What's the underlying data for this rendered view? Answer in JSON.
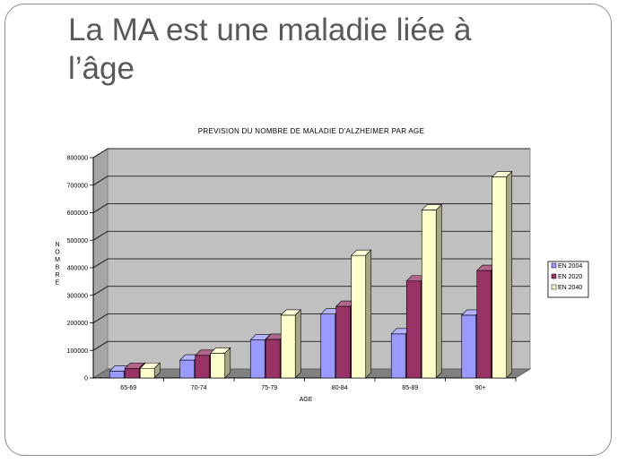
{
  "slide": {
    "title_line1": "La MA est une maladie liée à",
    "title_line2": "l’âge"
  },
  "chart_data": {
    "type": "bar",
    "title": "PREVISION DU NOMBRE DE MALADIE D'ALZHEIMER PAR AGE",
    "xlabel": "AGE",
    "ylabel": "NOMBRE",
    "ylim": [
      0,
      800000
    ],
    "yticks": [
      "0",
      "100000",
      "200000",
      "300000",
      "400000",
      "500000",
      "600000",
      "700000",
      "800000"
    ],
    "grid": true,
    "legend_position": "right",
    "categories": [
      "65-69",
      "70-74",
      "75-79",
      "80-84",
      "85-89",
      "90+"
    ],
    "series": [
      {
        "name": "EN 2004",
        "color": "#9999ff",
        "values": [
          25000,
          65000,
          138000,
          232000,
          160000,
          228000
        ]
      },
      {
        "name": "EN 2020",
        "color": "#993366",
        "values": [
          35000,
          82000,
          140000,
          260000,
          352000,
          390000
        ]
      },
      {
        "name": "EN 2040",
        "color": "#ffffcc",
        "values": [
          35000,
          90000,
          228000,
          445000,
          610000,
          730000
        ]
      }
    ]
  }
}
